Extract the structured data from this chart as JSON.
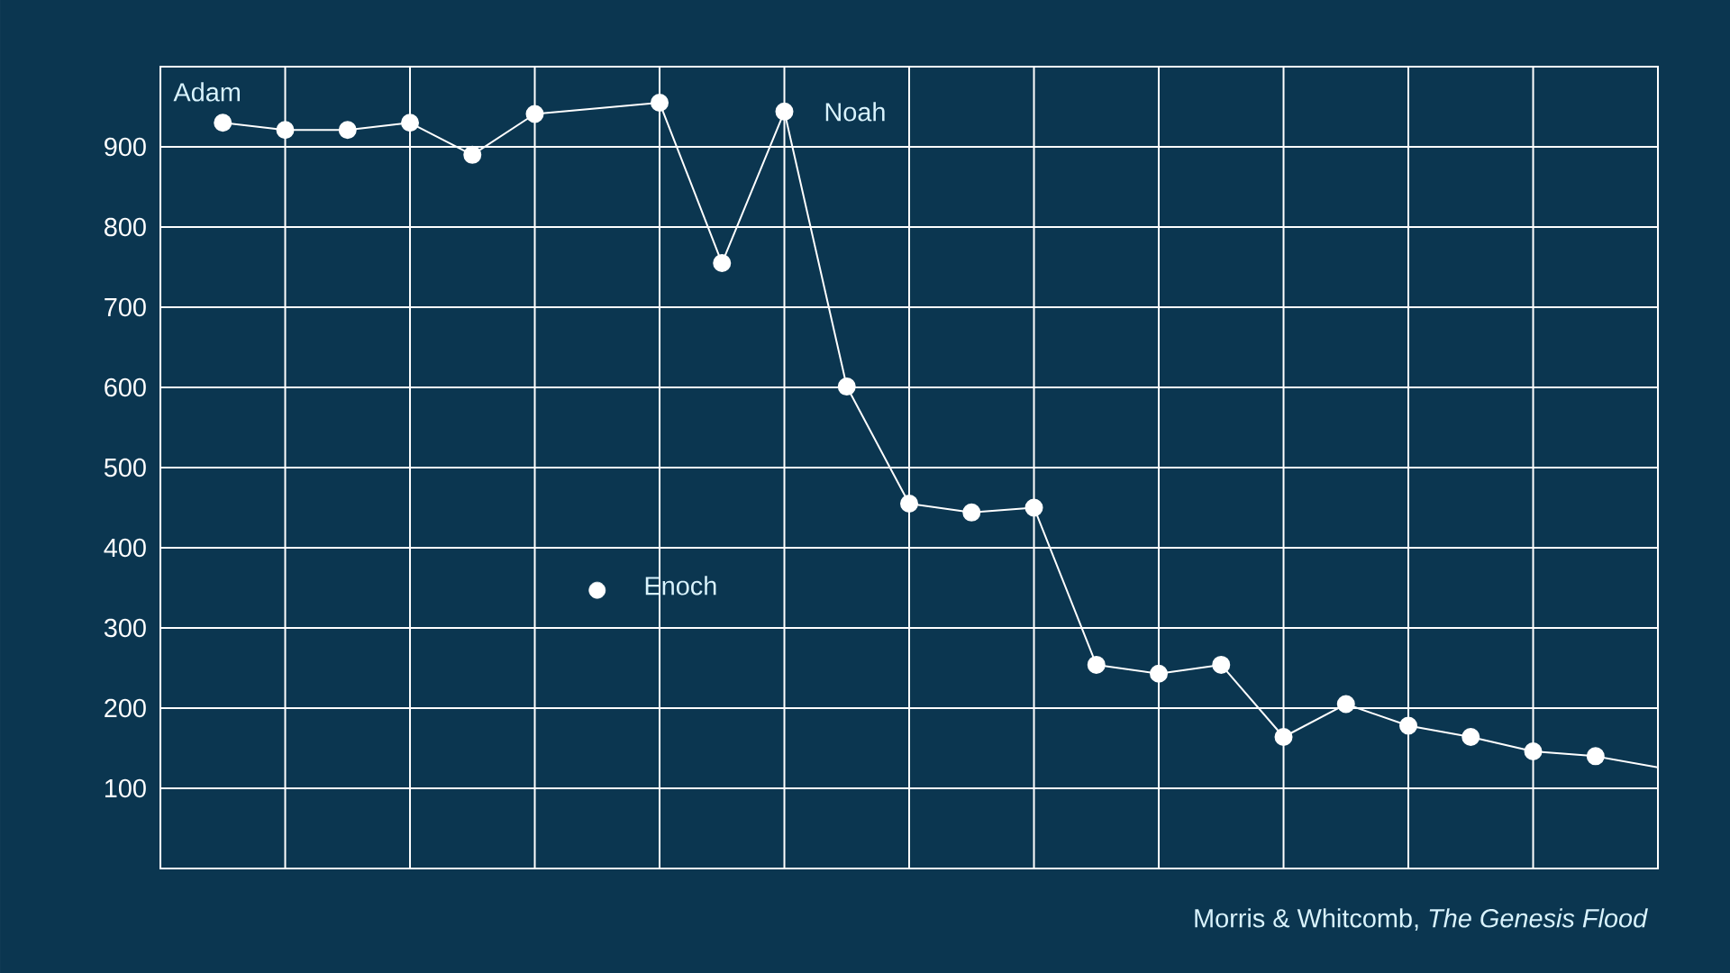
{
  "chart_data": {
    "type": "line",
    "categories": [
      null,
      null,
      null,
      null,
      null,
      null,
      null,
      null,
      null,
      null,
      null,
      null,
      null,
      null,
      null,
      null,
      null,
      null,
      null,
      null,
      null,
      null,
      null,
      null
    ],
    "ylim": [
      0,
      1000
    ],
    "yticks": [
      {
        "value": 0,
        "label": null
      },
      100,
      200,
      300,
      400,
      500,
      600,
      700,
      800,
      900,
      {
        "value": 1000,
        "label": null
      }
    ],
    "tick_labels": "y",
    "grid": true,
    "series": [
      {
        "type": "line",
        "color": "#ffffff",
        "marker": "circle",
        "line_style": "solid",
        "values": [
          930,
          921,
          921,
          930,
          890,
          941,
          null,
          955,
          755,
          944,
          601,
          455,
          444,
          450,
          254,
          243,
          254,
          164,
          205,
          178,
          164,
          146,
          140,
          null
        ]
      },
      {
        "type": "scatter",
        "color": "#ffffff",
        "marker": "circle",
        "values": [
          null,
          null,
          null,
          null,
          null,
          null,
          347,
          null,
          null,
          null,
          null,
          null,
          null,
          null,
          null,
          null,
          null,
          null,
          null,
          null,
          null,
          null,
          null,
          null
        ]
      },
      {
        "type": "line",
        "color": "#ffffff",
        "marker": "none",
        "values": [
          null,
          null,
          null,
          null,
          null,
          null,
          null,
          null,
          null,
          null,
          null,
          null,
          null,
          null,
          null,
          null,
          null,
          null,
          null,
          null,
          null,
          null,
          140,
          126
        ]
      }
    ],
    "annotations": [
      "Adam",
      "Noah",
      "Enoch",
      "Morris & Whitcomb, *The Genesis Flood*"
    ]
  }
}
